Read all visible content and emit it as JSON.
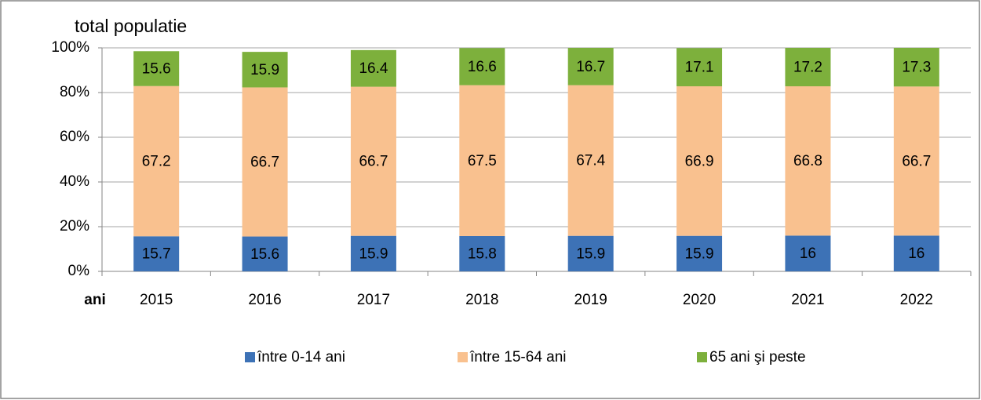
{
  "chart_data": {
    "type": "stacked_bar",
    "title": "total populatie",
    "x_label": "ani",
    "categories": [
      "2015",
      "2016",
      "2017",
      "2018",
      "2019",
      "2020",
      "2021",
      "2022"
    ],
    "series": [
      {
        "name": "între 0-14 ani",
        "color": "#3d72b6",
        "values": [
          15.7,
          15.6,
          15.9,
          15.8,
          15.9,
          15.9,
          16,
          16
        ]
      },
      {
        "name": "între 15-64 ani",
        "color": "#f9c18f",
        "values": [
          67.2,
          66.7,
          66.7,
          67.5,
          67.4,
          66.9,
          66.8,
          66.7
        ]
      },
      {
        "name": "65 ani şi peste",
        "color": "#7db03c",
        "values": [
          15.6,
          15.9,
          16.4,
          16.6,
          16.7,
          17.1,
          17.2,
          17.3
        ]
      }
    ],
    "ylim": [
      0,
      100
    ],
    "yticks": [
      {
        "value": 0,
        "label": "0%"
      },
      {
        "value": 20,
        "label": "20%"
      },
      {
        "value": 40,
        "label": "40%"
      },
      {
        "value": 60,
        "label": "60%"
      },
      {
        "value": 80,
        "label": "80%"
      },
      {
        "value": 100,
        "label": "100%"
      }
    ],
    "grid": true,
    "legend": "bottom"
  }
}
